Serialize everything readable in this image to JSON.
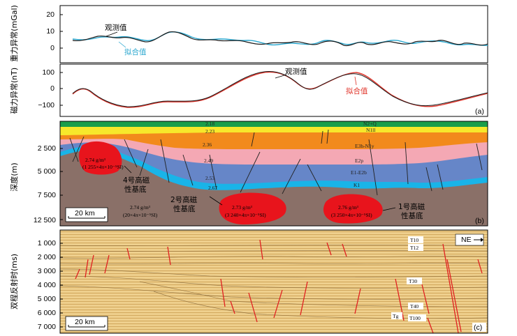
{
  "panel_a": {
    "ylabel": "重力异常(mGal)",
    "yticks": [
      "20",
      "10",
      "0"
    ],
    "observed_label": "观测值",
    "fitted_label": "拟合值",
    "panel_tag": "(a)",
    "colors": {
      "observed": "#1a1a1a",
      "fitted": "#2aa7cf"
    }
  },
  "panel_a_mag": {
    "ylabel": "磁力异常(nT)",
    "yticks": [
      "100",
      "0",
      "−100"
    ],
    "observed_label": "观测值",
    "fitted_label": "拟合值",
    "colors": {
      "observed": "#1a1a1a",
      "fitted": "#e0342a"
    }
  },
  "panel_b": {
    "ylabel": "深度(m)",
    "yticks": [
      "2 500",
      "5 000",
      "7 500",
      "12 500"
    ],
    "panel_tag": "(b)",
    "scale_bar": "20 km",
    "layer_labels": [
      "N2+Q",
      "N1ll",
      "E3h-N1y",
      "E2p",
      "E1-E2b",
      "K1"
    ],
    "density_values": [
      "2.18",
      "2.23",
      "2.36",
      "2.49",
      "2.53",
      "2.67"
    ],
    "body_4_name": "4号高磁\n性基底",
    "body_2_name": "2号高磁\n性基底",
    "body_1_name": "1号高磁\n性基底",
    "body_4_params": [
      "2.74 g/m³",
      "(1 255×4π×10⁻⁵SI)"
    ],
    "body_2_params": [
      "2.73 g/m³",
      "(3 240×4π×10⁻⁵SI)"
    ],
    "body_1_params": [
      "2.76 g/m³",
      "(3 250×4π×10⁻⁵SI)"
    ],
    "basement_params": [
      "2.74 g/m³",
      "(20×4π×10⁻⁵SI)"
    ],
    "colors": {
      "top": "#1a9e4a",
      "yellow": "#f7e82b",
      "orange": "#f28a1c",
      "pink": "#f4a8b4",
      "blue": "#6686c8",
      "cyan": "#19b4e8",
      "basement": "#8a7068",
      "magnetic": "#e8141c"
    }
  },
  "panel_c": {
    "ylabel": "双程反射时(ms)",
    "yticks": [
      "1 000",
      "2 000",
      "3 000",
      "4 000",
      "5 000",
      "6 000",
      "7 000"
    ],
    "panel_tag": "(c)",
    "scale_bar": "20 km",
    "north_arrow": "NE",
    "horizons": [
      "T10",
      "T12",
      "T30",
      "T40",
      "Tg",
      "T100"
    ]
  }
}
